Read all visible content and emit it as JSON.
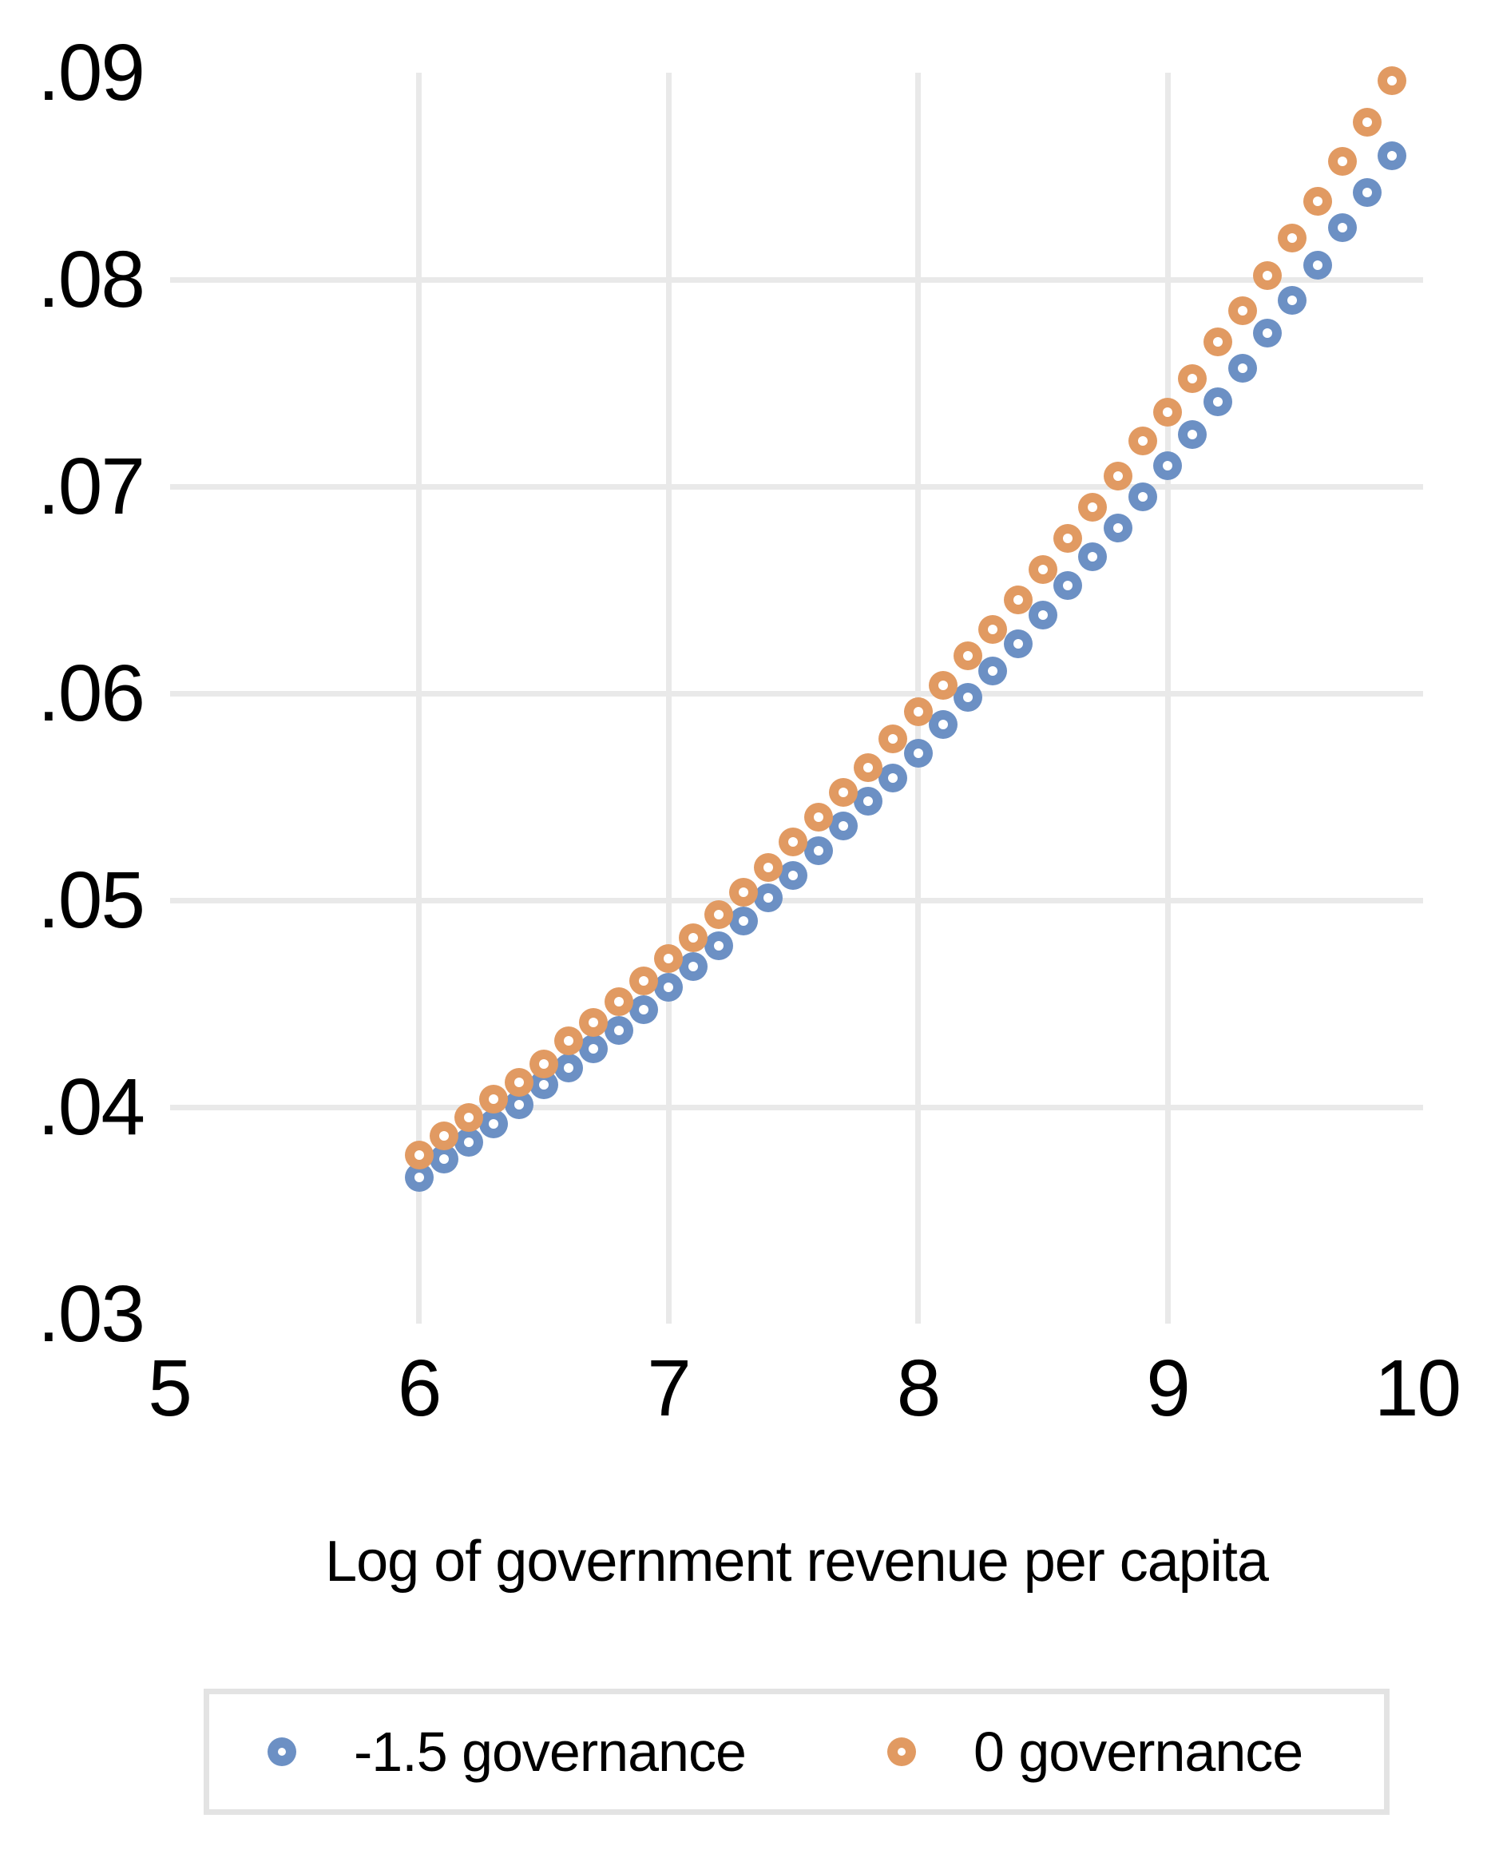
{
  "chart_data": {
    "type": "scatter",
    "title": "",
    "xlabel": "Log of government revenue per capita",
    "ylabel": "",
    "marker_style": "donut-circle",
    "grid": {
      "show": true,
      "color": "#e9e9e9",
      "vertical_at": [
        6,
        7,
        8,
        9
      ],
      "horizontal_at": [
        0.04,
        0.05,
        0.06,
        0.07,
        0.08
      ]
    },
    "x_ticks": [
      {
        "label": "5",
        "value": 5
      },
      {
        "label": "6",
        "value": 6
      },
      {
        "label": "7",
        "value": 7
      },
      {
        "label": "8",
        "value": 8
      },
      {
        "label": "9",
        "value": 9
      },
      {
        "label": "10",
        "value": 10
      }
    ],
    "y_ticks": [
      {
        "label": ".03",
        "value": 0.03
      },
      {
        "label": ".04",
        "value": 0.04
      },
      {
        "label": ".05",
        "value": 0.05
      },
      {
        "label": ".06",
        "value": 0.06
      },
      {
        "label": ".07",
        "value": 0.07
      },
      {
        "label": ".08",
        "value": 0.08
      },
      {
        "label": ".09",
        "value": 0.09
      }
    ],
    "xlim": [
      5,
      10.02
    ],
    "ylim": [
      0.0297,
      0.09
    ],
    "legend": {
      "position": "bottom",
      "border_color": "#e3e3e3"
    },
    "x": [
      6.0,
      6.1,
      6.2,
      6.3,
      6.4,
      6.5,
      6.6,
      6.7,
      6.8,
      6.9,
      7.0,
      7.1,
      7.2,
      7.3,
      7.4,
      7.5,
      7.6,
      7.7,
      7.8,
      7.9,
      8.0,
      8.1,
      8.2,
      8.3,
      8.4,
      8.5,
      8.6,
      8.7,
      8.8,
      8.9,
      9.0,
      9.1,
      9.2,
      9.3,
      9.4,
      9.5,
      9.6,
      9.7,
      9.8,
      9.9
    ],
    "series": [
      {
        "name": "-1.5 governance",
        "color": "#6c90c4",
        "values": [
          0.0366,
          0.0375,
          0.0383,
          0.0392,
          0.0401,
          0.0411,
          0.0419,
          0.0428,
          0.0437,
          0.0447,
          0.0458,
          0.0468,
          0.0478,
          0.049,
          0.0501,
          0.0512,
          0.0524,
          0.0536,
          0.0548,
          0.0559,
          0.0571,
          0.0585,
          0.0598,
          0.0611,
          0.0624,
          0.0638,
          0.0652,
          0.0666,
          0.068,
          0.0695,
          0.071,
          0.0725,
          0.0741,
          0.0757,
          0.0774,
          0.079,
          0.0807,
          0.0825,
          0.0842,
          0.086
        ]
      },
      {
        "name": "0 governance",
        "color": "#e19a62",
        "values": [
          0.0377,
          0.0386,
          0.0395,
          0.0404,
          0.0412,
          0.0421,
          0.0432,
          0.0441,
          0.0451,
          0.0461,
          0.0472,
          0.0482,
          0.0493,
          0.0504,
          0.0516,
          0.0528,
          0.054,
          0.0552,
          0.0564,
          0.0578,
          0.0591,
          0.0604,
          0.0618,
          0.0631,
          0.0645,
          0.066,
          0.0675,
          0.069,
          0.0705,
          0.0722,
          0.0736,
          0.0752,
          0.077,
          0.0785,
          0.0802,
          0.082,
          0.0838,
          0.0857,
          0.0876,
          0.0896
        ]
      }
    ]
  }
}
